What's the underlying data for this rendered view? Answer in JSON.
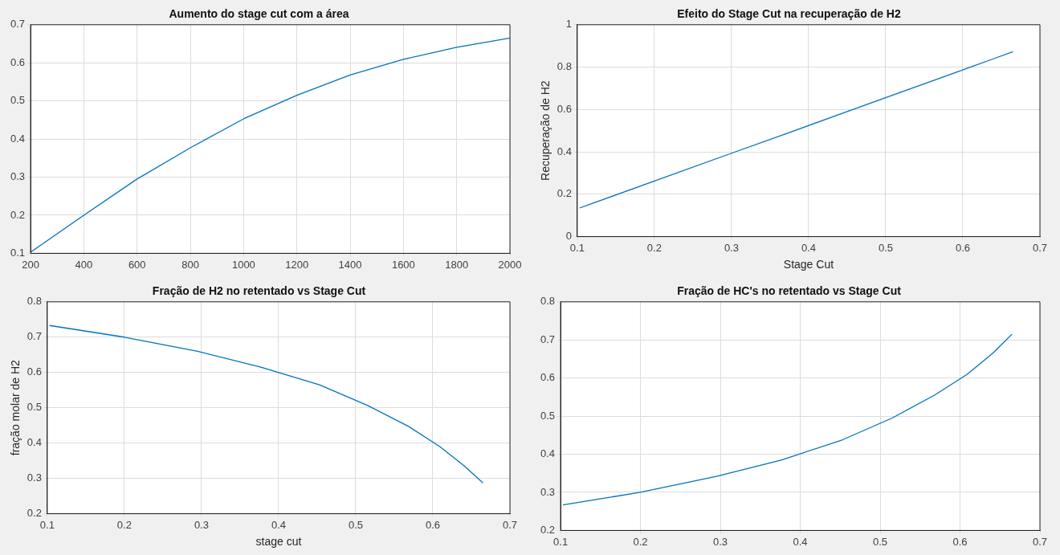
{
  "chart_data": [
    {
      "type": "line",
      "title": "Aumento do stage cut com a área",
      "x": [
        200,
        400,
        600,
        800,
        1000,
        1200,
        1400,
        1600,
        1800,
        2000
      ],
      "series": [
        {
          "color": "#0072bd",
          "values": [
            0.103,
            0.2,
            0.295,
            0.377,
            0.453,
            0.515,
            0.568,
            0.609,
            0.641,
            0.665
          ]
        }
      ],
      "xlim": [
        200,
        2000
      ],
      "ylim": [
        0.1,
        0.7
      ],
      "xticks": [
        200,
        400,
        600,
        800,
        1000,
        1200,
        1400,
        1600,
        1800,
        2000
      ],
      "yticks": [
        0.1,
        0.2,
        0.3,
        0.4,
        0.5,
        0.6,
        0.7
      ],
      "grid": true
    },
    {
      "type": "line",
      "title": "Efeito do Stage Cut na recuperação de H2",
      "xlabel": "Stage Cut",
      "ylabel": "Recuperação de H2",
      "x": [
        0.103,
        0.2,
        0.295,
        0.377,
        0.453,
        0.515,
        0.568,
        0.609,
        0.641,
        0.665
      ],
      "series": [
        {
          "color": "#0072bd",
          "values": [
            0.135,
            0.262,
            0.387,
            0.494,
            0.594,
            0.676,
            0.745,
            0.799,
            0.841,
            0.873
          ]
        }
      ],
      "xlim": [
        0.1,
        0.7
      ],
      "ylim": [
        0,
        1
      ],
      "xticks": [
        0.1,
        0.2,
        0.3,
        0.4,
        0.5,
        0.6,
        0.7
      ],
      "yticks": [
        0,
        0.2,
        0.4,
        0.6,
        0.8,
        1
      ],
      "grid": true
    },
    {
      "type": "line",
      "title": "Fração de H2 no retentado vs Stage Cut",
      "xlabel": "stage cut",
      "ylabel": "fração molar de H2",
      "x": [
        0.103,
        0.2,
        0.295,
        0.377,
        0.453,
        0.515,
        0.568,
        0.609,
        0.641,
        0.665
      ],
      "series": [
        {
          "color": "#0072bd",
          "values": [
            0.733,
            0.7,
            0.66,
            0.615,
            0.565,
            0.507,
            0.448,
            0.39,
            0.335,
            0.287
          ]
        }
      ],
      "xlim": [
        0.1,
        0.7
      ],
      "ylim": [
        0.2,
        0.8
      ],
      "xticks": [
        0.1,
        0.2,
        0.3,
        0.4,
        0.5,
        0.6,
        0.7
      ],
      "yticks": [
        0.2,
        0.3,
        0.4,
        0.5,
        0.6,
        0.7,
        0.8
      ],
      "grid": true
    },
    {
      "type": "line",
      "title": "Fração de HC's no retentado vs Stage Cut",
      "x": [
        0.103,
        0.2,
        0.295,
        0.377,
        0.453,
        0.515,
        0.568,
        0.609,
        0.641,
        0.665
      ],
      "series": [
        {
          "color": "#0072bd",
          "values": [
            0.267,
            0.3,
            0.342,
            0.385,
            0.438,
            0.495,
            0.555,
            0.61,
            0.665,
            0.715
          ]
        }
      ],
      "xlim": [
        0.1,
        0.7
      ],
      "ylim": [
        0.2,
        0.8
      ],
      "xticks": [
        0.1,
        0.2,
        0.3,
        0.4,
        0.5,
        0.6,
        0.7
      ],
      "yticks": [
        0.2,
        0.3,
        0.4,
        0.5,
        0.6,
        0.7,
        0.8
      ],
      "grid": true
    }
  ]
}
